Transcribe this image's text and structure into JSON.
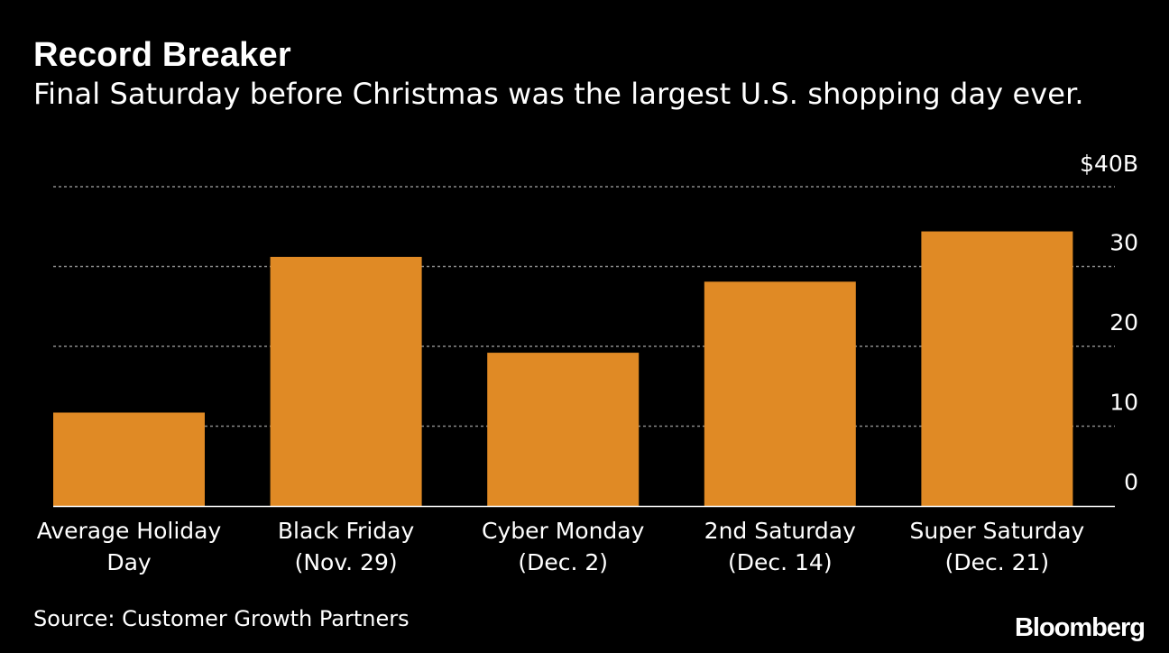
{
  "chart_data": {
    "type": "bar",
    "title": "Record Breaker",
    "subtitle": "Final Saturday before Christmas was the largest U.S. shopping day ever.",
    "categories": [
      [
        "Average Holiday",
        "Day"
      ],
      [
        "Black Friday",
        "(Nov. 29)"
      ],
      [
        "Cyber Monday",
        "(Dec. 2)"
      ],
      [
        "2nd Saturday",
        "(Dec. 14)"
      ],
      [
        "Super Saturday",
        "(Dec. 21)"
      ]
    ],
    "values": [
      11.7,
      31.2,
      19.2,
      28.1,
      34.4
    ],
    "ylim": [
      0,
      40
    ],
    "yticks": [
      0,
      10,
      20,
      30,
      40
    ],
    "ytick_labels": [
      "0",
      "10",
      "20",
      "30",
      "$40B"
    ],
    "grid": true,
    "bar_color": "#e08a25",
    "grid_color": "#8a8a8a"
  },
  "source": "Source: Customer Growth Partners",
  "brand": "Bloomberg"
}
